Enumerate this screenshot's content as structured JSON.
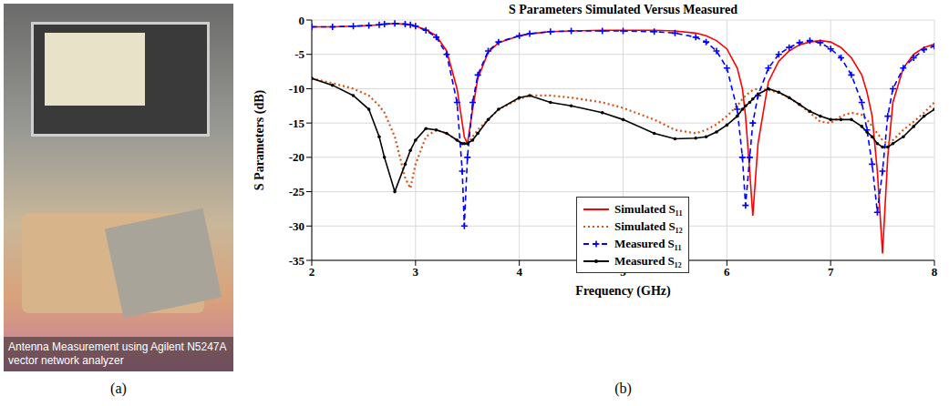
{
  "panels": [
    {
      "label": "(a)",
      "caption": "Antenna Measurement using Agilent N5247A vector network analyzer"
    },
    {
      "label": "(b)"
    }
  ],
  "chart_data": {
    "type": "line",
    "title": "S Parameters Simulated Versus Measured",
    "x_label": "Frequency (GHz)",
    "y_label": "S Parameters (dB)",
    "x": [
      2,
      2.2,
      2.4,
      2.55,
      2.65,
      2.7,
      2.8,
      2.9,
      2.95,
      3.0,
      3.1,
      3.2,
      3.3,
      3.4,
      3.45,
      3.47,
      3.5,
      3.55,
      3.6,
      3.7,
      3.8,
      4.0,
      4.1,
      4.3,
      4.5,
      4.8,
      5.0,
      5.3,
      5.5,
      5.7,
      5.8,
      5.9,
      6.0,
      6.1,
      6.15,
      6.18,
      6.22,
      6.25,
      6.3,
      6.4,
      6.5,
      6.6,
      6.7,
      6.8,
      6.9,
      7.0,
      7.1,
      7.2,
      7.3,
      7.35,
      7.4,
      7.45,
      7.5,
      7.55,
      7.6,
      7.7,
      7.8,
      7.9,
      8.0
    ],
    "series": [
      {
        "name": "Simulated S₁₁",
        "color": "#ff0000",
        "line_style": "solid",
        "marker": "none",
        "values": [
          -1,
          -1,
          -0.9,
          -0.8,
          -0.7,
          -0.6,
          -0.5,
          -0.6,
          -0.7,
          -0.9,
          -1.4,
          -2.3,
          -4.5,
          -10,
          -15,
          -17,
          -18,
          -13,
          -8.5,
          -4.7,
          -3.3,
          -2.3,
          -2,
          -1.7,
          -1.6,
          -1.5,
          -1.5,
          -1.5,
          -1.6,
          -1.9,
          -2.3,
          -3,
          -4.2,
          -7,
          -10,
          -14,
          -22,
          -28.5,
          -18,
          -9,
          -6,
          -4.5,
          -3.6,
          -3.2,
          -3,
          -3.2,
          -4,
          -5.5,
          -8,
          -10.5,
          -14,
          -22,
          -34,
          -20,
          -12,
          -7,
          -5,
          -4,
          -3.5
        ]
      },
      {
        "name": "Simulated S₁₂",
        "color": "#d95319",
        "line_style": "dotted",
        "marker": "none",
        "values": [
          -8.5,
          -9.2,
          -10,
          -11,
          -12.5,
          -13.5,
          -17,
          -23,
          -24.5,
          -21,
          -17,
          -16,
          -16.5,
          -17.5,
          -18,
          -18,
          -18,
          -17,
          -16,
          -14.5,
          -13,
          -11.5,
          -11,
          -11,
          -11.3,
          -12,
          -12.8,
          -14.5,
          -16,
          -16.5,
          -16,
          -15.2,
          -14,
          -12.5,
          -11.5,
          -11,
          -10.5,
          -10.2,
          -10,
          -10.2,
          -10.6,
          -11.3,
          -12.3,
          -13.5,
          -14.8,
          -15,
          -14,
          -13.5,
          -13.8,
          -14.5,
          -15.5,
          -16.5,
          -17.5,
          -18,
          -17.5,
          -16,
          -14.8,
          -13.5,
          -12
        ]
      },
      {
        "name": "Measured S₁₁",
        "color": "#0000ff",
        "line_style": "dashed",
        "marker": "plus",
        "values": [
          -1,
          -1,
          -0.9,
          -0.8,
          -0.7,
          -0.6,
          -0.5,
          -0.6,
          -0.7,
          -0.9,
          -1.5,
          -2.5,
          -5,
          -12,
          -22,
          -30,
          -20,
          -12,
          -8,
          -4.5,
          -3.2,
          -2.3,
          -2,
          -1.7,
          -1.6,
          -1.6,
          -1.6,
          -1.7,
          -1.9,
          -2.5,
          -3.2,
          -4.5,
          -7,
          -13,
          -20,
          -27,
          -20,
          -15,
          -11,
          -7,
          -5,
          -4,
          -3.3,
          -3,
          -3.3,
          -4.2,
          -5.5,
          -8,
          -12,
          -16,
          -21,
          -28,
          -22,
          -14,
          -10,
          -7,
          -5.5,
          -4.3,
          -3.8
        ]
      },
      {
        "name": "Measured S₁₂",
        "color": "#000000",
        "line_style": "solid",
        "marker": "dot",
        "values": [
          -8.5,
          -9.5,
          -11,
          -13,
          -17,
          -20,
          -25,
          -21,
          -19,
          -17.5,
          -15.8,
          -16,
          -16.5,
          -17.5,
          -18,
          -18,
          -18,
          -17.5,
          -16.5,
          -14.5,
          -13,
          -11.3,
          -11,
          -12,
          -12.5,
          -13.5,
          -14.5,
          -16.5,
          -17.3,
          -17.2,
          -17,
          -16.3,
          -15.3,
          -14,
          -13,
          -12.5,
          -12,
          -11.5,
          -10.8,
          -10,
          -10.5,
          -11.3,
          -12.3,
          -13.3,
          -14,
          -14.5,
          -14.5,
          -14.5,
          -15.5,
          -16.3,
          -17,
          -18,
          -18.5,
          -18.5,
          -18,
          -17,
          -15.5,
          -14,
          -13
        ]
      }
    ],
    "xlim": [
      2,
      8
    ],
    "xticks": [
      2,
      3,
      4,
      5,
      6,
      7,
      8
    ],
    "ylim": [
      -35,
      0
    ],
    "yticks": [
      -35,
      -30,
      -25,
      -20,
      -15,
      -10,
      -5,
      0
    ],
    "grid": true,
    "legend": "center"
  }
}
